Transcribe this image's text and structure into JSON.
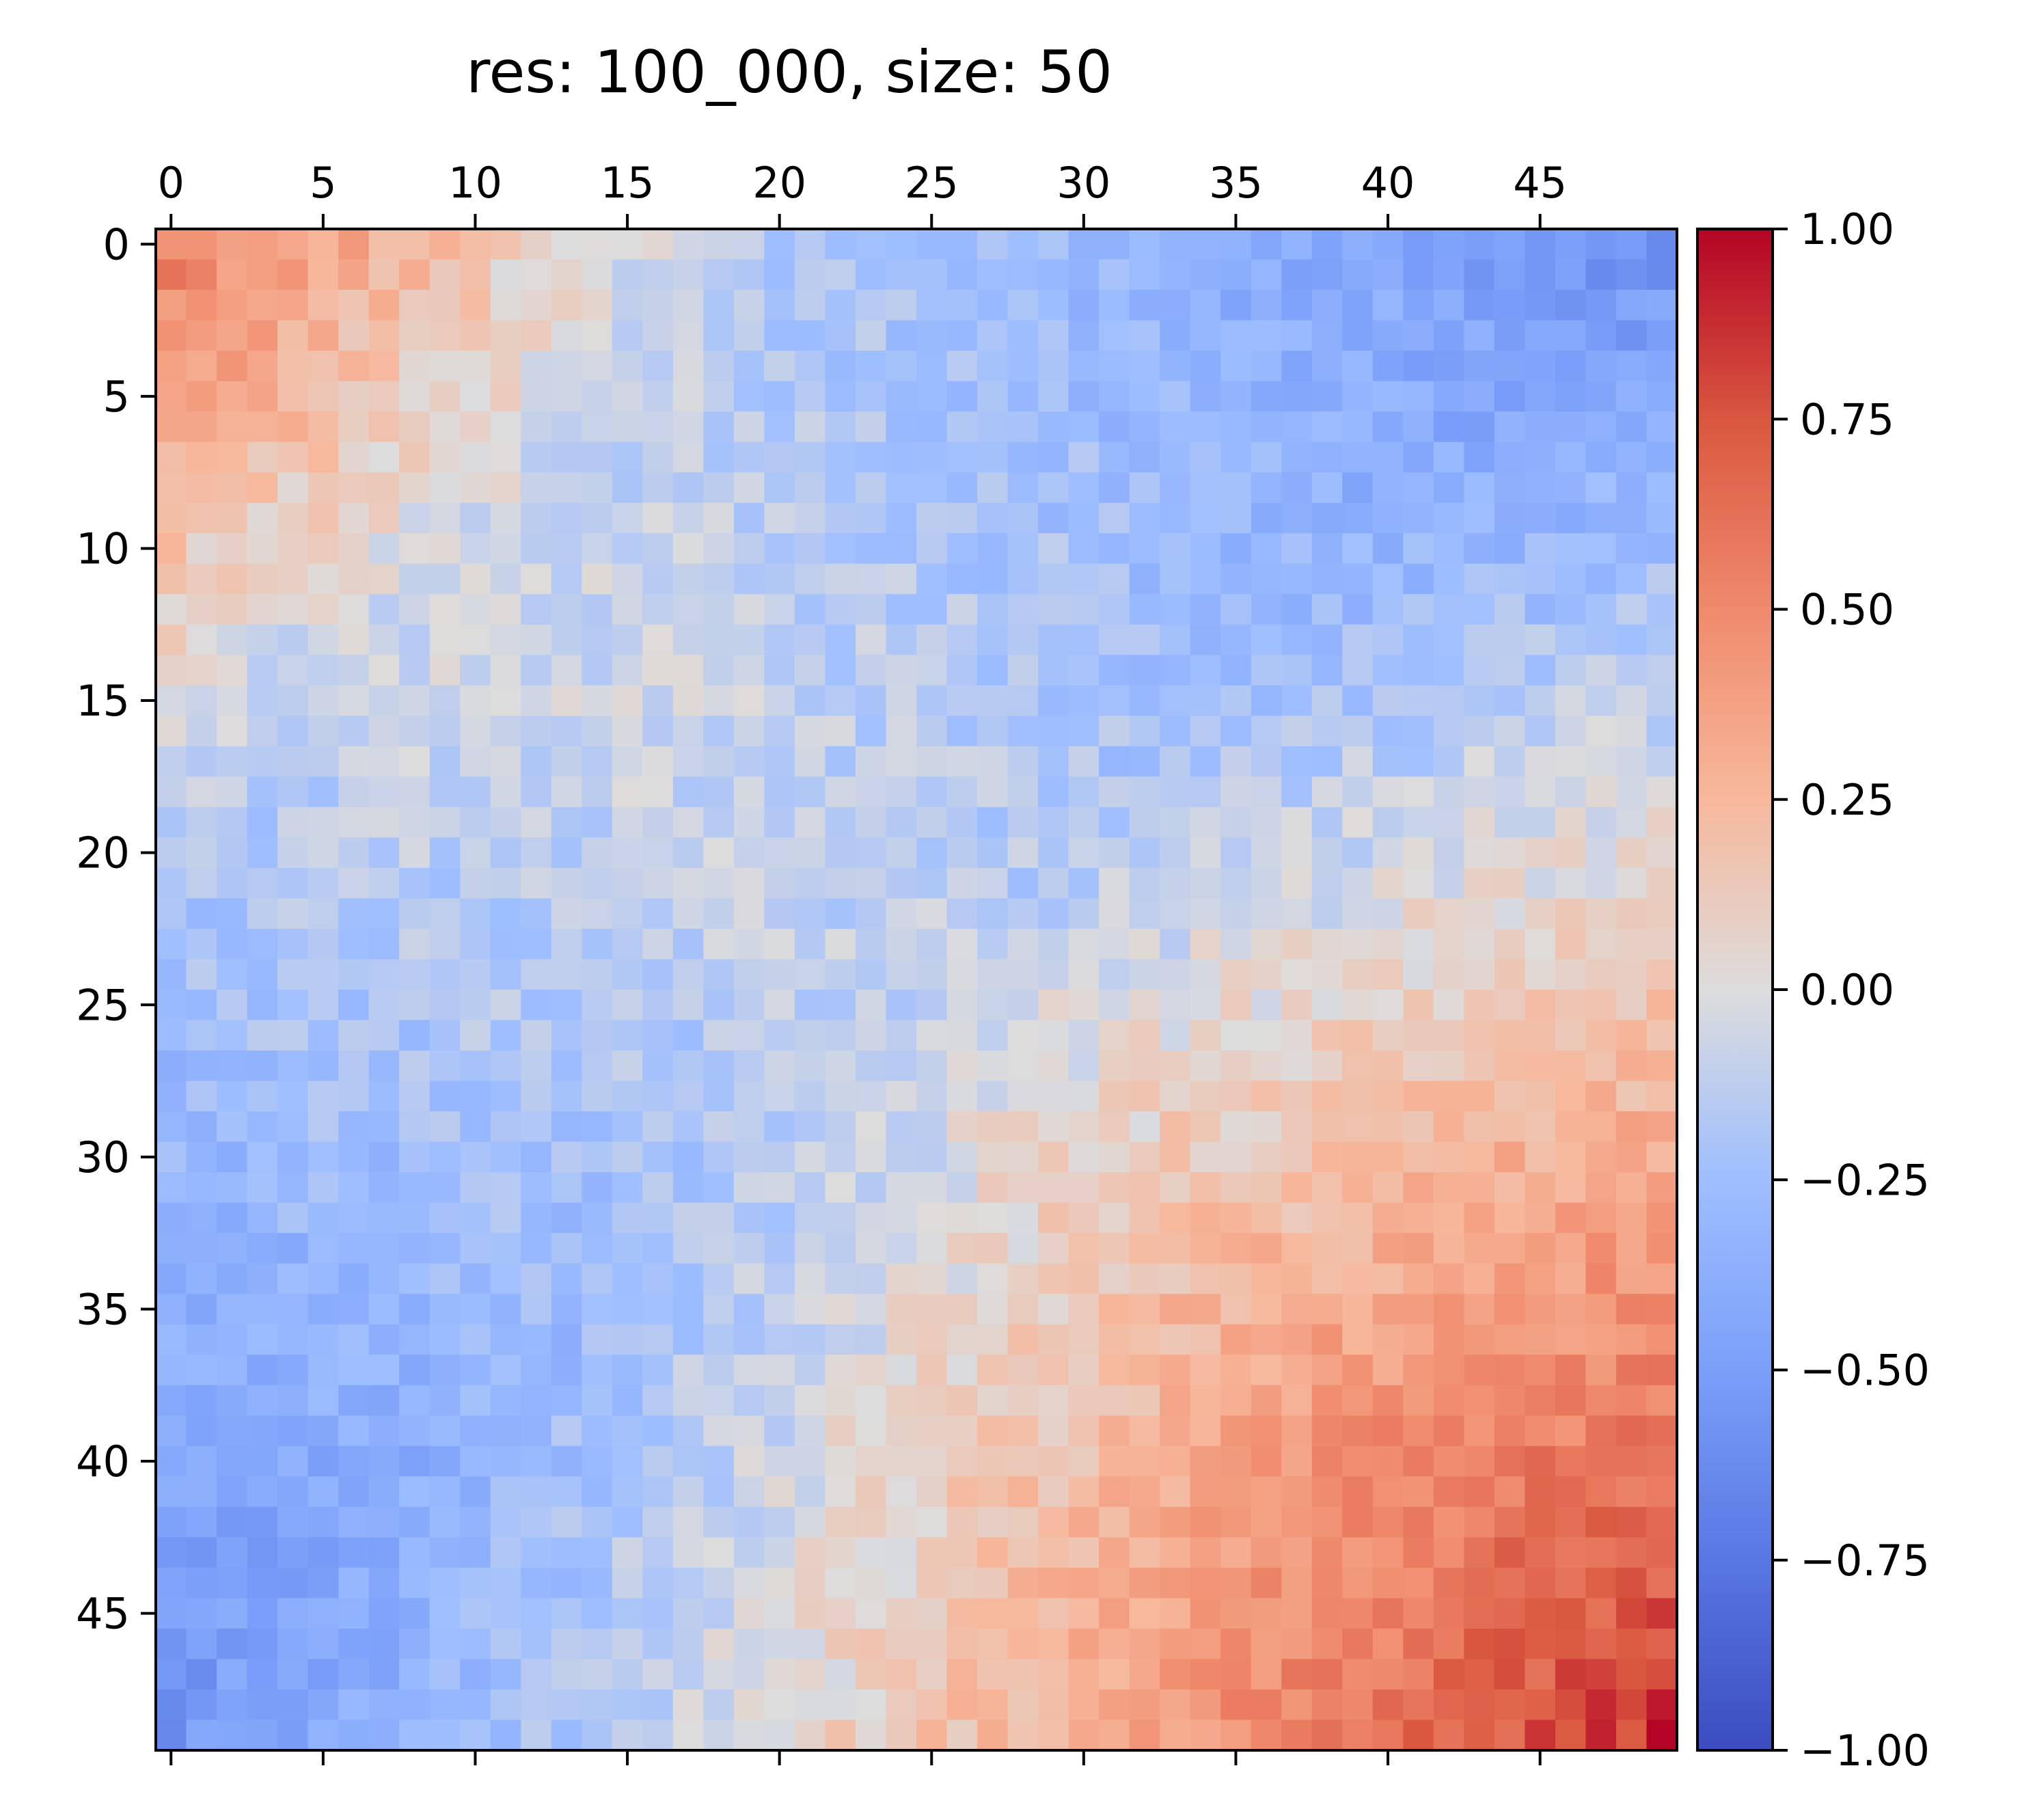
{
  "chart_data": {
    "type": "heatmap",
    "title": "res: 100_000, size: 50",
    "size": 50,
    "x_ticks": [
      0,
      5,
      10,
      15,
      20,
      25,
      30,
      35,
      40,
      45
    ],
    "y_ticks": [
      0,
      5,
      10,
      15,
      20,
      25,
      30,
      35,
      40,
      45
    ],
    "x_tick_position": "top",
    "colorbar": {
      "colormap": "coolwarm",
      "vmin": -1.0,
      "vmax": 1.0,
      "ticks": [
        {
          "value": 1.0,
          "label": "1.00"
        },
        {
          "value": 0.75,
          "label": "0.75"
        },
        {
          "value": 0.5,
          "label": "0.50"
        },
        {
          "value": 0.25,
          "label": "0.25"
        },
        {
          "value": 0.0,
          "label": "0.00"
        },
        {
          "value": -0.25,
          "label": "−0.25"
        },
        {
          "value": -0.5,
          "label": "−0.50"
        },
        {
          "value": -0.75,
          "label": "−0.75"
        },
        {
          "value": -1.0,
          "label": "−1.00"
        }
      ]
    },
    "pattern": {
      "top_left_mean": 0.35,
      "bottom_right_mean": 0.45,
      "off_diagonal_mean": -0.45,
      "corner_top_right": -0.55,
      "corner_bottom_left": -0.5,
      "max_cell": {
        "row": 49,
        "col": 49,
        "value": 1.0
      }
    }
  }
}
